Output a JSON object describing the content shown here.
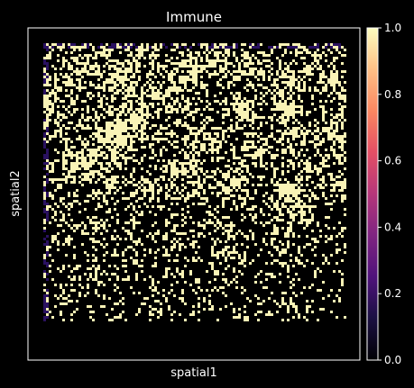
{
  "chart_data": {
    "type": "heatmap",
    "title": "Immune",
    "xlabel": "spatial1",
    "ylabel": "spatial2",
    "colormap": "magma",
    "colorbar": {
      "min": 0.0,
      "max": 1.0,
      "ticks": [
        0.0,
        0.2,
        0.4,
        0.6,
        0.8,
        1.0
      ],
      "tick_labels": [
        "0.0",
        "0.2",
        "0.4",
        "0.6",
        "0.8",
        "1.0"
      ]
    },
    "value_levels": [
      0.0,
      0.1,
      1.0
    ],
    "description_values": {
      "background": 0.0,
      "tissue_low": 0.0,
      "tissue_high": 1.0
    },
    "axis_ticks": "none"
  },
  "colors": {
    "background": "#000000",
    "frame": "#ffffff",
    "high": "#f9f3b6",
    "low": "#000004",
    "edge_low": "#2a1160"
  }
}
